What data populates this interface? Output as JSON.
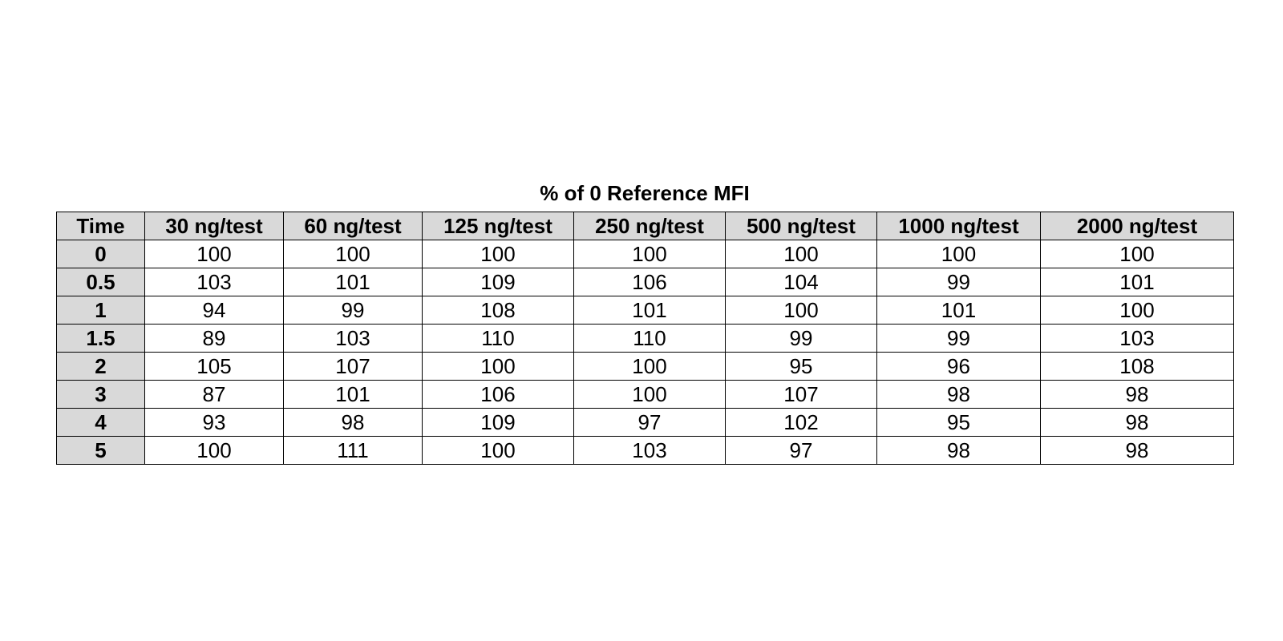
{
  "chart_data": {
    "type": "table",
    "title": "% of 0 Reference MFI",
    "row_header": "Time",
    "columns": [
      "30 ng/test",
      "60 ng/test",
      "125 ng/test",
      "250 ng/test",
      "500 ng/test",
      "1000 ng/test",
      "2000 ng/test"
    ],
    "rows": [
      {
        "time": "0",
        "values": [
          100,
          100,
          100,
          100,
          100,
          100,
          100
        ]
      },
      {
        "time": "0.5",
        "values": [
          103,
          101,
          109,
          106,
          104,
          99,
          101
        ]
      },
      {
        "time": "1",
        "values": [
          94,
          99,
          108,
          101,
          100,
          101,
          100
        ]
      },
      {
        "time": "1.5",
        "values": [
          89,
          103,
          110,
          110,
          99,
          99,
          103
        ]
      },
      {
        "time": "2",
        "values": [
          105,
          107,
          100,
          100,
          95,
          96,
          108
        ]
      },
      {
        "time": "3",
        "values": [
          87,
          101,
          106,
          100,
          107,
          98,
          98
        ]
      },
      {
        "time": "4",
        "values": [
          93,
          98,
          109,
          97,
          102,
          95,
          98
        ]
      },
      {
        "time": "5",
        "values": [
          100,
          111,
          100,
          103,
          97,
          98,
          98
        ]
      }
    ]
  },
  "colors": {
    "header_fill": "#d9d9d9",
    "cell_fill": "#ffffff",
    "border": "#000000"
  }
}
